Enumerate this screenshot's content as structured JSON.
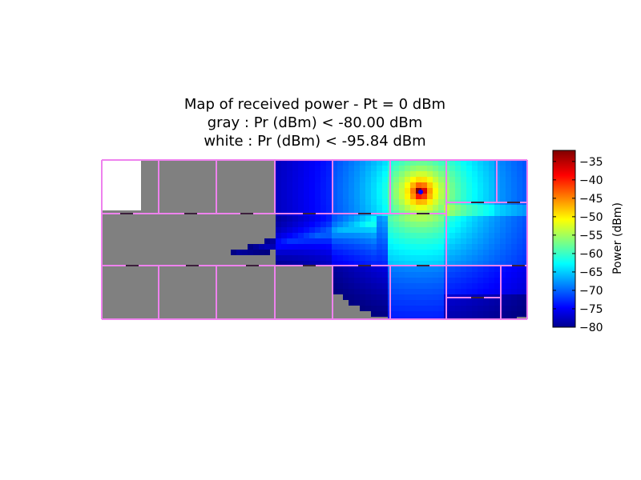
{
  "title_lines": [
    "Map of received power - Pt = 0 dBm",
    "gray : Pr (dBm) < -80.00 dBm",
    "white : Pr (dBm) < -95.84 dBm"
  ],
  "chart_data": {
    "type": "heatmap",
    "title": "Map of received power - Pt = 0 dBm\ngray : Pr (dBm) < -80.00 dBm\nwhite : Pr (dBm) < -95.84 dBm",
    "colorbar": {
      "label": "Power (dBm)",
      "ticks": [
        -35,
        -40,
        -45,
        -50,
        -55,
        -60,
        -65,
        -70,
        -75,
        -80
      ],
      "range": [
        -80,
        -32
      ],
      "colormap": "jet"
    },
    "thresholds": {
      "gray_below_dBm": -80.0,
      "white_below_dBm": -95.84
    },
    "colors": {
      "walls": "#ee82ee",
      "doors": "#000000",
      "transmitter": "#0000ff",
      "gray_region": "#808080",
      "white_region": "#ffffff"
    },
    "axes_visible": false,
    "grid": false
  }
}
